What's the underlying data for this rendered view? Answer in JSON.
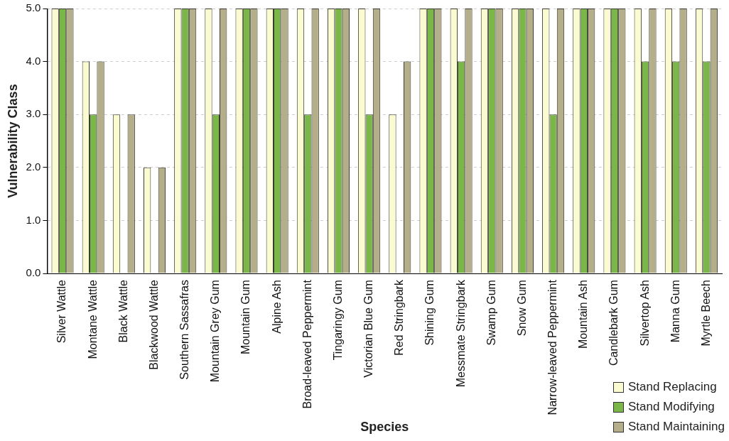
{
  "chart_data": {
    "type": "bar",
    "xlabel": "Species",
    "ylabel": "Vulnerability Class",
    "categories": [
      "Silver Wattle",
      "Montane Wattle",
      "Black Wattle",
      "Blackwood Wattle",
      "Southern Sassafras",
      "Mountain Grey Gum",
      "Mountain Gum",
      "Alpine Ash",
      "Broad-leaved Peppermint",
      "Tingaringy Gum",
      "Victorian Blue Gum",
      "Red Stringbark",
      "Shining Gum",
      "Messmate Stringbark",
      "Swamp Gum",
      "Snow Gum",
      "Narrow-leaved Peppermint",
      "Mountain Ash",
      "Candlebark Gum",
      "Silvertop Ash",
      "Manna Gum",
      "Myrtle Beech"
    ],
    "series": [
      {
        "name": "Stand Replacing",
        "color": "#fbfbd2",
        "values": [
          5,
          4,
          3,
          2,
          5,
          5,
          5,
          5,
          5,
          5,
          5,
          3,
          5,
          5,
          5,
          5,
          5,
          5,
          5,
          5,
          5,
          5
        ]
      },
      {
        "name": "Stand Modifying",
        "color": "#7ab648",
        "values": [
          5,
          3,
          null,
          null,
          5,
          3,
          5,
          5,
          3,
          5,
          3,
          null,
          5,
          4,
          5,
          5,
          3,
          5,
          5,
          4,
          4,
          4
        ]
      },
      {
        "name": "Stand Maintaining",
        "color": "#b4af8a",
        "values": [
          5,
          4,
          3,
          2,
          5,
          5,
          5,
          5,
          5,
          5,
          5,
          4,
          5,
          5,
          5,
          5,
          5,
          5,
          5,
          5,
          5,
          5
        ]
      }
    ],
    "ylim": [
      0,
      5
    ],
    "yticks": [
      {
        "value": 0,
        "label": "0.0"
      },
      {
        "value": 1,
        "label": "1.0"
      },
      {
        "value": 2,
        "label": "2.0"
      },
      {
        "value": 3,
        "label": "3.0"
      },
      {
        "value": 4,
        "label": "4.0"
      },
      {
        "value": 5,
        "label": "5.0"
      }
    ],
    "grid": "y",
    "legend": "bottom right"
  }
}
